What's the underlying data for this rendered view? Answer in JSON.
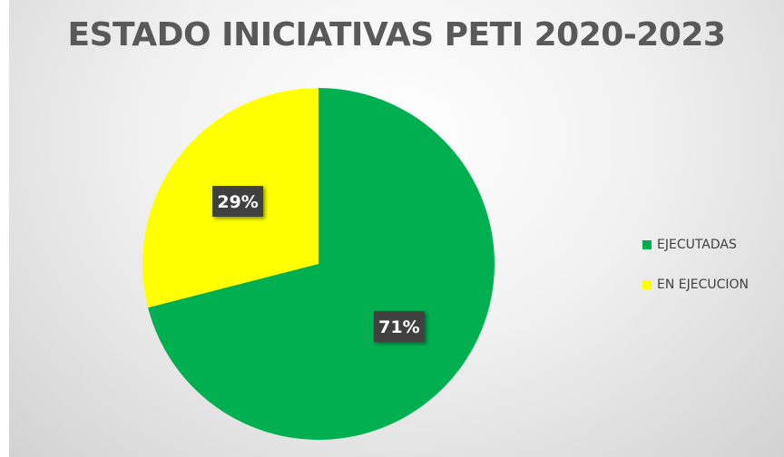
{
  "chart_data": {
    "type": "pie",
    "title": "ESTADO INICIATIVAS PETI 2020-2023",
    "categories": [
      "EJECUTADAS",
      "EN EJECUCION"
    ],
    "values": [
      71,
      29
    ],
    "data_labels": [
      "71%",
      "29%"
    ],
    "colors": [
      "#00B050",
      "#FFFF00"
    ],
    "label_box_color": "#404040",
    "legend_position": "right"
  }
}
